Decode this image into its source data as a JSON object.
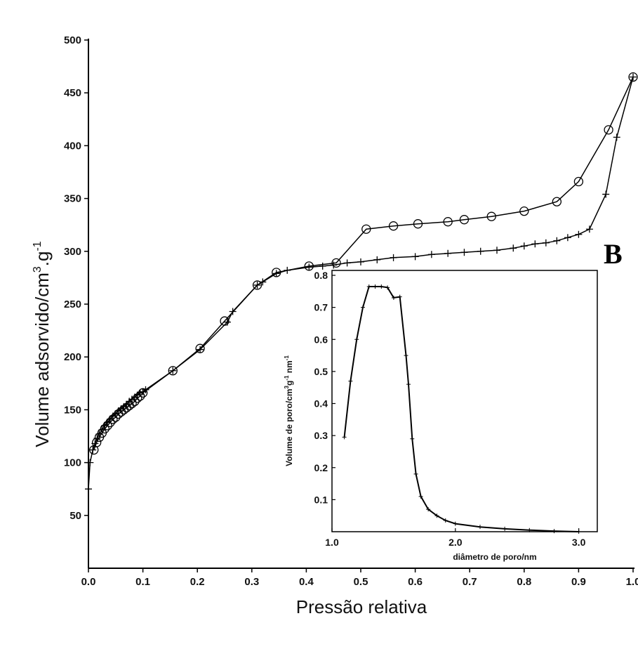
{
  "panel_label": "B",
  "chart_data": [
    {
      "type": "line",
      "title": "",
      "xlabel": "Pressão relativa",
      "ylabel": {
        "main": "Volume adsorvido/cm",
        "sup1": "3",
        "mid": ".g",
        "sup2": "-1"
      },
      "xlim": [
        0.0,
        1.0
      ],
      "ylim": [
        0,
        500
      ],
      "x_ticks": [
        0.0,
        0.1,
        0.2,
        0.3,
        0.4,
        0.5,
        0.6,
        0.7,
        0.8,
        0.9,
        1.0
      ],
      "x_tick_labels": [
        "0.0",
        "0.1",
        "0.2",
        "0.3",
        "0.4",
        "0.5",
        "0.6",
        "0.7",
        "0.8",
        "0.9",
        "1.0"
      ],
      "y_ticks": [
        50,
        100,
        150,
        200,
        250,
        300,
        350,
        400,
        450,
        500
      ],
      "y_tick_labels": [
        "50",
        "100",
        "150",
        "200",
        "250",
        "300",
        "350",
        "400",
        "450",
        "500"
      ],
      "series": [
        {
          "marker": "plus",
          "x": [
            0.0,
            0.003,
            0.008,
            0.012,
            0.016,
            0.02,
            0.025,
            0.03,
            0.035,
            0.04,
            0.045,
            0.05,
            0.055,
            0.06,
            0.065,
            0.07,
            0.075,
            0.08,
            0.085,
            0.09,
            0.095,
            0.1,
            0.105,
            0.155,
            0.205,
            0.255,
            0.265,
            0.31,
            0.32,
            0.345,
            0.365,
            0.405,
            0.43,
            0.45,
            0.475,
            0.5,
            0.53,
            0.56,
            0.6,
            0.63,
            0.66,
            0.69,
            0.72,
            0.75,
            0.78,
            0.8,
            0.82,
            0.84,
            0.86,
            0.88,
            0.9,
            0.92,
            0.95,
            0.97,
            1.0
          ],
          "y": [
            75,
            100,
            112,
            118,
            123,
            127,
            131,
            135,
            138,
            141,
            144,
            146,
            149,
            151,
            153,
            155,
            158,
            160,
            162,
            164,
            166,
            167,
            169,
            187,
            207,
            233,
            243,
            268,
            271,
            279,
            282,
            285,
            286,
            287,
            289,
            290,
            292,
            294,
            295,
            297,
            298,
            299,
            300,
            301,
            303,
            305,
            307,
            308,
            310,
            313,
            316,
            321,
            354,
            408,
            465
          ]
        },
        {
          "marker": "circle",
          "x": [
            0.01,
            0.015,
            0.02,
            0.025,
            0.03,
            0.035,
            0.04,
            0.045,
            0.05,
            0.055,
            0.06,
            0.065,
            0.07,
            0.075,
            0.08,
            0.085,
            0.09,
            0.095,
            0.1,
            0.155,
            0.205,
            0.25,
            0.31,
            0.345,
            0.405,
            0.455,
            0.51,
            0.56,
            0.605,
            0.66,
            0.69,
            0.74,
            0.8,
            0.86,
            0.9,
            0.955,
            1.0
          ],
          "y": [
            112,
            119,
            124,
            128,
            132,
            135,
            138,
            141,
            143,
            146,
            148,
            150,
            152,
            154,
            156,
            158,
            161,
            163,
            166,
            187,
            208,
            234,
            268,
            280,
            286,
            289,
            321,
            324,
            326,
            328,
            330,
            333,
            338,
            347,
            366,
            415,
            465
          ]
        }
      ]
    },
    {
      "type": "line",
      "title": "",
      "xlabel": "diâmetro de poro/nm",
      "ylabel": {
        "main": "Volume de poro/cm",
        "sup1": "3",
        "mid": "g",
        "sup2": "-1",
        "end": " nm",
        "sup3": "-1"
      },
      "xlim": [
        1.0,
        3.15
      ],
      "ylim": [
        0.0,
        0.82
      ],
      "x_ticks": [
        1.0,
        2.0,
        3.0
      ],
      "x_tick_labels": [
        "1.0",
        "2.0",
        "3.0"
      ],
      "y_ticks": [
        0.1,
        0.2,
        0.3,
        0.4,
        0.5,
        0.6,
        0.7,
        0.8
      ],
      "y_tick_labels": [
        "0.1",
        "0.2",
        "0.3",
        "0.4",
        "0.5",
        "0.6",
        "0.7",
        "0.8"
      ],
      "series": [
        {
          "x": [
            1.1,
            1.15,
            1.2,
            1.25,
            1.3,
            1.35,
            1.4,
            1.45,
            1.5,
            1.55,
            1.6,
            1.62,
            1.65,
            1.68,
            1.72,
            1.78,
            1.85,
            1.92,
            2.0,
            2.2,
            2.4,
            2.6,
            2.8,
            3.0
          ],
          "y": [
            0.295,
            0.47,
            0.6,
            0.7,
            0.765,
            0.765,
            0.765,
            0.762,
            0.73,
            0.733,
            0.55,
            0.46,
            0.29,
            0.18,
            0.11,
            0.07,
            0.05,
            0.035,
            0.025,
            0.015,
            0.009,
            0.005,
            0.002,
            0.0
          ]
        }
      ]
    }
  ]
}
